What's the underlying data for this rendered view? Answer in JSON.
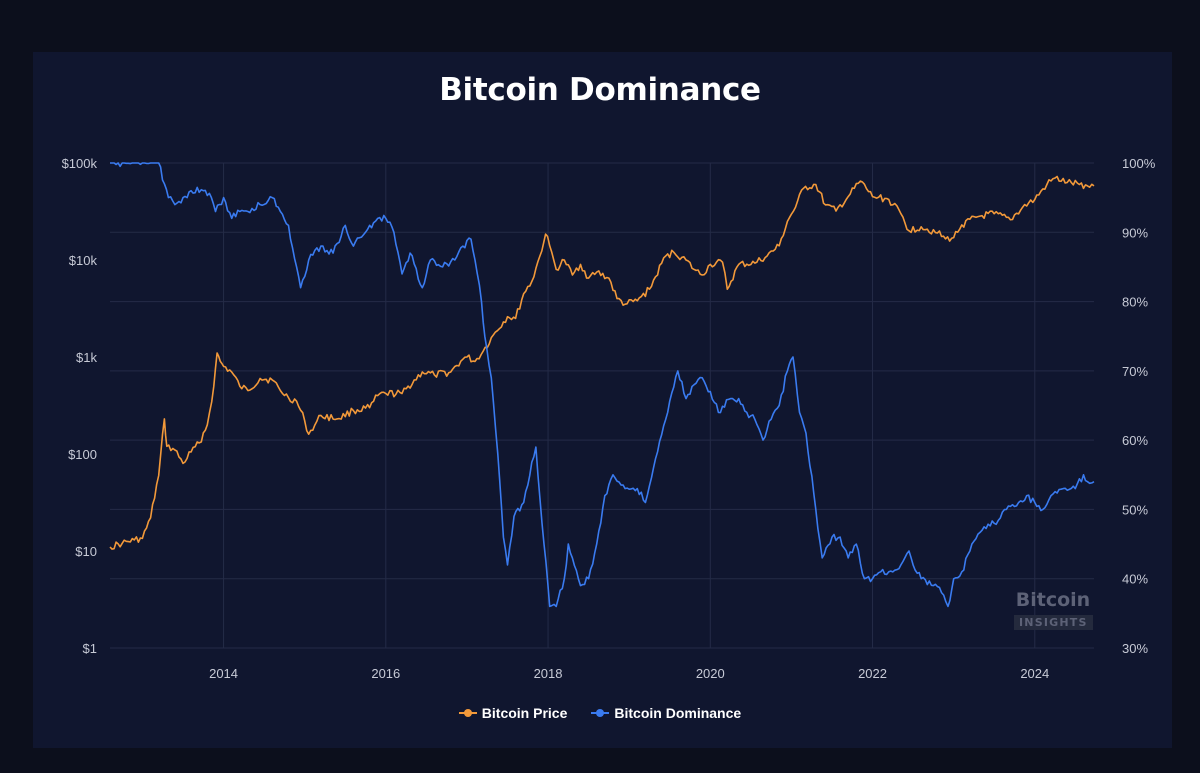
{
  "chart_data": {
    "type": "line",
    "title": "Bitcoin Dominance",
    "x_ticks": [
      "2014",
      "2016",
      "2018",
      "2020",
      "2022",
      "2024"
    ],
    "x_range": [
      2012.6,
      2024.73
    ],
    "y_left": {
      "scale": "log",
      "range": [
        1,
        100000
      ],
      "ticks": [
        "$1",
        "$10",
        "$100",
        "$1k",
        "$10k",
        "$100k"
      ]
    },
    "y_right": {
      "scale": "linear",
      "range": [
        30,
        100
      ],
      "ticks": [
        "30%",
        "40%",
        "50%",
        "60%",
        "70%",
        "80%",
        "90%",
        "100%"
      ]
    },
    "grid": true,
    "legend_position": "bottom",
    "series": [
      {
        "name": "Bitcoin Price",
        "axis": "left",
        "color": "#f2993a",
        "points": [
          [
            2012.6,
            11
          ],
          [
            2012.75,
            12
          ],
          [
            2012.9,
            13
          ],
          [
            2013.0,
            13.5
          ],
          [
            2013.1,
            22
          ],
          [
            2013.2,
            60
          ],
          [
            2013.27,
            230
          ],
          [
            2013.3,
            120
          ],
          [
            2013.4,
            110
          ],
          [
            2013.5,
            80
          ],
          [
            2013.6,
            105
          ],
          [
            2013.7,
            130
          ],
          [
            2013.8,
            200
          ],
          [
            2013.88,
            500
          ],
          [
            2013.92,
            1100
          ],
          [
            2013.96,
            900
          ],
          [
            2014.0,
            800
          ],
          [
            2014.1,
            700
          ],
          [
            2014.2,
            500
          ],
          [
            2014.3,
            450
          ],
          [
            2014.45,
            600
          ],
          [
            2014.6,
            580
          ],
          [
            2014.7,
            450
          ],
          [
            2014.8,
            380
          ],
          [
            2014.9,
            350
          ],
          [
            2015.0,
            220
          ],
          [
            2015.05,
            160
          ],
          [
            2015.2,
            250
          ],
          [
            2015.4,
            230
          ],
          [
            2015.6,
            280
          ],
          [
            2015.8,
            300
          ],
          [
            2015.9,
            400
          ],
          [
            2016.0,
            420
          ],
          [
            2016.2,
            420
          ],
          [
            2016.45,
            700
          ],
          [
            2016.6,
            650
          ],
          [
            2016.8,
            700
          ],
          [
            2016.95,
            950
          ],
          [
            2017.0,
            1000
          ],
          [
            2017.1,
            900
          ],
          [
            2017.2,
            1150
          ],
          [
            2017.35,
            1800
          ],
          [
            2017.5,
            2600
          ],
          [
            2017.6,
            2500
          ],
          [
            2017.7,
            4500
          ],
          [
            2017.8,
            6000
          ],
          [
            2017.9,
            11000
          ],
          [
            2017.97,
            18500
          ],
          [
            2018.02,
            14000
          ],
          [
            2018.1,
            8000
          ],
          [
            2018.2,
            10000
          ],
          [
            2018.3,
            7000
          ],
          [
            2018.4,
            9000
          ],
          [
            2018.5,
            6500
          ],
          [
            2018.6,
            7500
          ],
          [
            2018.75,
            6500
          ],
          [
            2018.85,
            4000
          ],
          [
            2018.95,
            3500
          ],
          [
            2019.1,
            3800
          ],
          [
            2019.25,
            5000
          ],
          [
            2019.45,
            11000
          ],
          [
            2019.55,
            12000
          ],
          [
            2019.7,
            10000
          ],
          [
            2019.8,
            8000
          ],
          [
            2019.9,
            7000
          ],
          [
            2020.0,
            9000
          ],
          [
            2020.15,
            9500
          ],
          [
            2020.21,
            5000
          ],
          [
            2020.35,
            9000
          ],
          [
            2020.55,
            9300
          ],
          [
            2020.7,
            11000
          ],
          [
            2020.85,
            14000
          ],
          [
            2020.95,
            25000
          ],
          [
            2021.05,
            35000
          ],
          [
            2021.15,
            55000
          ],
          [
            2021.3,
            60000
          ],
          [
            2021.42,
            37000
          ],
          [
            2021.55,
            32000
          ],
          [
            2021.7,
            45000
          ],
          [
            2021.85,
            65000
          ],
          [
            2022.0,
            45000
          ],
          [
            2022.2,
            42000
          ],
          [
            2022.35,
            30000
          ],
          [
            2022.45,
            20000
          ],
          [
            2022.6,
            22000
          ],
          [
            2022.8,
            19000
          ],
          [
            2022.9,
            16500
          ],
          [
            2023.0,
            17000
          ],
          [
            2023.1,
            23000
          ],
          [
            2023.3,
            28000
          ],
          [
            2023.5,
            30000
          ],
          [
            2023.7,
            26000
          ],
          [
            2023.85,
            35000
          ],
          [
            2024.0,
            42000
          ],
          [
            2024.15,
            60000
          ],
          [
            2024.25,
            70000
          ],
          [
            2024.4,
            63000
          ],
          [
            2024.55,
            60000
          ],
          [
            2024.65,
            58000
          ],
          [
            2024.73,
            58000
          ]
        ]
      },
      {
        "name": "Bitcoin Dominance",
        "axis": "right",
        "color": "#3a7bf0",
        "points": [
          [
            2012.6,
            100
          ],
          [
            2013.1,
            100
          ],
          [
            2013.2,
            100
          ],
          [
            2013.27,
            97
          ],
          [
            2013.32,
            95
          ],
          [
            2013.4,
            94
          ],
          [
            2013.5,
            95
          ],
          [
            2013.6,
            96
          ],
          [
            2013.75,
            96
          ],
          [
            2013.85,
            95
          ],
          [
            2013.9,
            93
          ],
          [
            2014.0,
            95
          ],
          [
            2014.1,
            92
          ],
          [
            2014.2,
            93
          ],
          [
            2014.3,
            93
          ],
          [
            2014.45,
            94
          ],
          [
            2014.6,
            95
          ],
          [
            2014.7,
            93
          ],
          [
            2014.8,
            91
          ],
          [
            2014.9,
            85
          ],
          [
            2014.95,
            82
          ],
          [
            2015.05,
            86
          ],
          [
            2015.2,
            88
          ],
          [
            2015.35,
            87
          ],
          [
            2015.5,
            91
          ],
          [
            2015.6,
            88
          ],
          [
            2015.75,
            90
          ],
          [
            2015.9,
            92
          ],
          [
            2016.0,
            92
          ],
          [
            2016.1,
            90
          ],
          [
            2016.2,
            84
          ],
          [
            2016.3,
            87
          ],
          [
            2016.45,
            82
          ],
          [
            2016.55,
            86
          ],
          [
            2016.7,
            85
          ],
          [
            2016.85,
            86
          ],
          [
            2016.95,
            88
          ],
          [
            2017.05,
            89
          ],
          [
            2017.1,
            86
          ],
          [
            2017.18,
            80
          ],
          [
            2017.22,
            75
          ],
          [
            2017.3,
            69
          ],
          [
            2017.38,
            58
          ],
          [
            2017.45,
            46
          ],
          [
            2017.5,
            42
          ],
          [
            2017.58,
            49
          ],
          [
            2017.7,
            51
          ],
          [
            2017.85,
            59
          ],
          [
            2017.95,
            45
          ],
          [
            2018.02,
            36
          ],
          [
            2018.1,
            36
          ],
          [
            2018.2,
            40
          ],
          [
            2018.25,
            45
          ],
          [
            2018.3,
            43
          ],
          [
            2018.4,
            39
          ],
          [
            2018.5,
            40
          ],
          [
            2018.6,
            45
          ],
          [
            2018.7,
            52
          ],
          [
            2018.8,
            55
          ],
          [
            2018.95,
            53
          ],
          [
            2019.1,
            53
          ],
          [
            2019.2,
            51
          ],
          [
            2019.3,
            56
          ],
          [
            2019.45,
            63
          ],
          [
            2019.6,
            70
          ],
          [
            2019.7,
            66
          ],
          [
            2019.8,
            68
          ],
          [
            2019.9,
            69
          ],
          [
            2020.0,
            67
          ],
          [
            2020.1,
            64
          ],
          [
            2020.25,
            66
          ],
          [
            2020.35,
            66
          ],
          [
            2020.45,
            64
          ],
          [
            2020.55,
            63
          ],
          [
            2020.65,
            60
          ],
          [
            2020.75,
            63
          ],
          [
            2020.85,
            65
          ],
          [
            2020.95,
            70
          ],
          [
            2021.02,
            72
          ],
          [
            2021.1,
            64
          ],
          [
            2021.18,
            61
          ],
          [
            2021.3,
            50
          ],
          [
            2021.38,
            43
          ],
          [
            2021.5,
            46
          ],
          [
            2021.6,
            46
          ],
          [
            2021.7,
            43
          ],
          [
            2021.8,
            45
          ],
          [
            2021.9,
            40
          ],
          [
            2022.0,
            40
          ],
          [
            2022.1,
            41
          ],
          [
            2022.2,
            41
          ],
          [
            2022.35,
            42
          ],
          [
            2022.45,
            44
          ],
          [
            2022.5,
            42
          ],
          [
            2022.6,
            40
          ],
          [
            2022.75,
            39
          ],
          [
            2022.85,
            38
          ],
          [
            2022.93,
            36
          ],
          [
            2023.0,
            40
          ],
          [
            2023.1,
            41
          ],
          [
            2023.2,
            44
          ],
          [
            2023.35,
            47
          ],
          [
            2023.5,
            48
          ],
          [
            2023.65,
            50
          ],
          [
            2023.8,
            51
          ],
          [
            2023.9,
            52
          ],
          [
            2024.0,
            51
          ],
          [
            2024.1,
            50
          ],
          [
            2024.2,
            52
          ],
          [
            2024.35,
            53
          ],
          [
            2024.5,
            53
          ],
          [
            2024.6,
            55
          ],
          [
            2024.65,
            54
          ],
          [
            2024.73,
            54
          ]
        ]
      }
    ]
  },
  "watermark": {
    "line1": "Bitcoin",
    "line2": "INSIGHTS"
  }
}
